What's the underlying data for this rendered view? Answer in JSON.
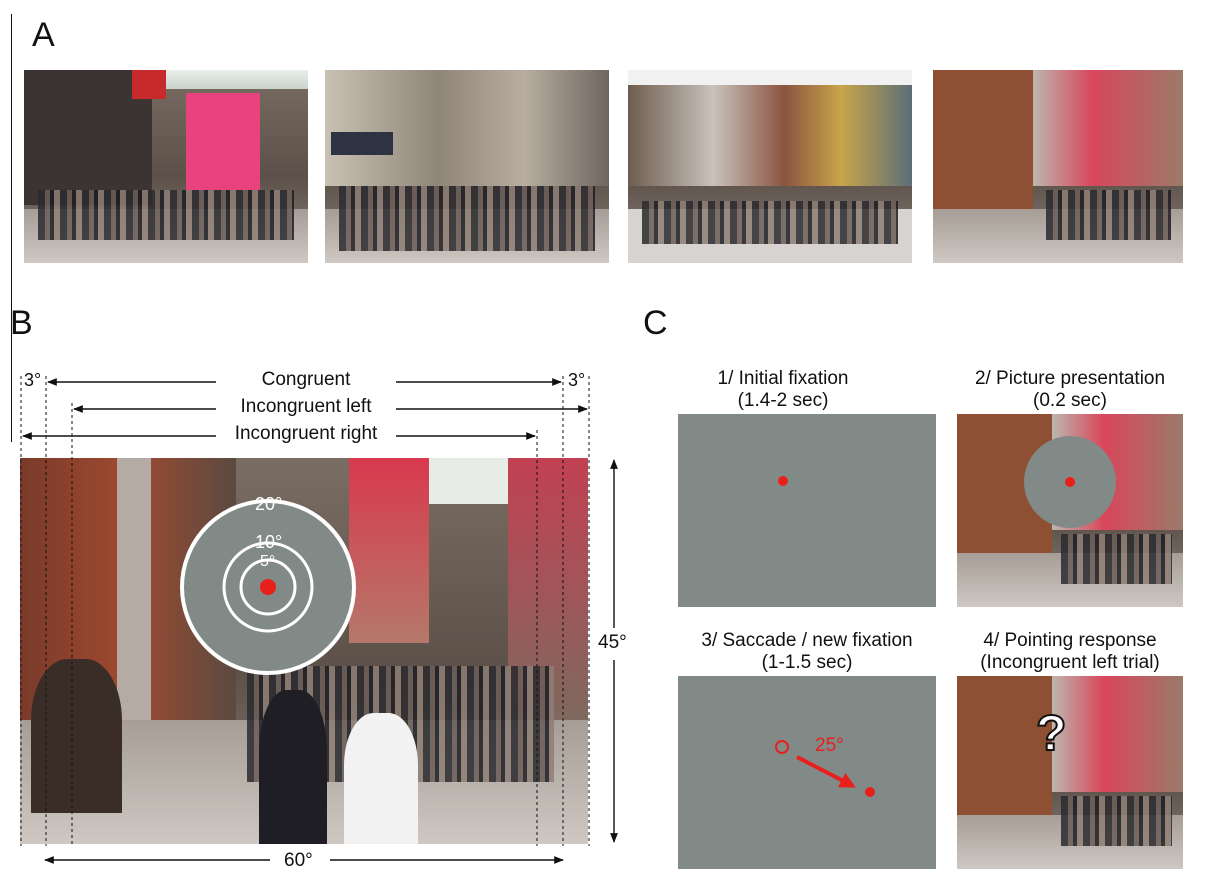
{
  "panels": {
    "a": "A",
    "b": "B",
    "c": "C"
  },
  "panel_b": {
    "bars": {
      "congruent": "Congruent",
      "incongruent_left": "Incongruent left",
      "incongruent_right": "Incongruent right"
    },
    "offset_left": "3°",
    "offset_right": "3°",
    "width_label": "60°",
    "height_label": "45°",
    "rings": {
      "outer": "20°",
      "middle": "10°",
      "inner": "5°"
    }
  },
  "panel_c": {
    "step1": {
      "title": "1/ Initial fixation",
      "duration": "(1.4-2 sec)"
    },
    "step2": {
      "title": "2/ Picture presentation",
      "duration": "(0.2 sec)"
    },
    "step3": {
      "title": "3/ Saccade / new fixation",
      "duration": "(1-1.5 sec)",
      "saccade_label": "25°"
    },
    "step4": {
      "title": "4/ Pointing response",
      "duration": "(Incongruent left trial)",
      "question_mark": "?"
    }
  },
  "colors": {
    "gray_mask": "#818a86",
    "fixation": "#e8201c",
    "line": "#111111"
  }
}
